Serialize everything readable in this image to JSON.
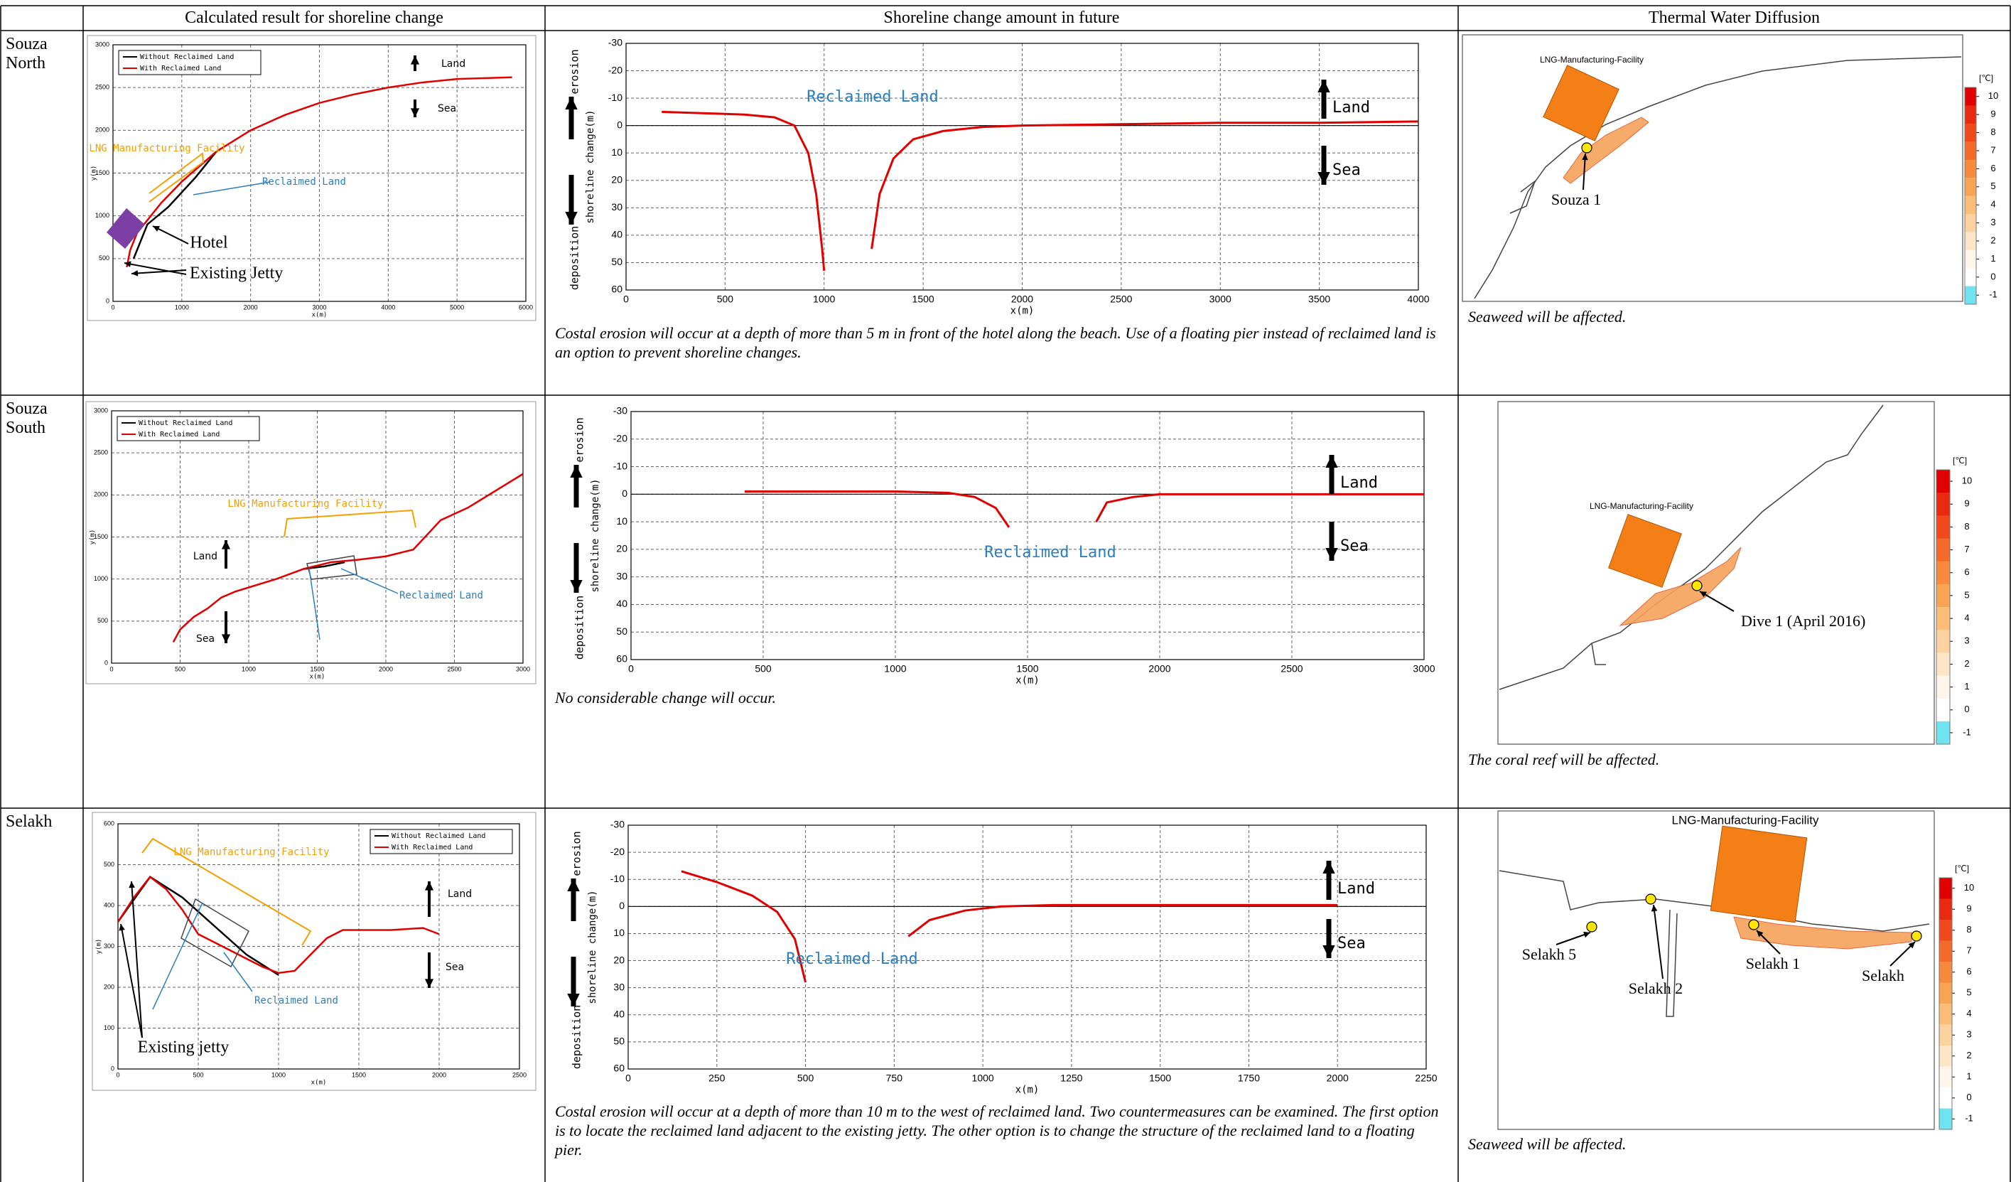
{
  "header": {
    "columns": [
      "Calculated result for shoreline change",
      "Shoreline change amount in future",
      "Thermal Water Diffusion"
    ]
  },
  "rows": [
    {
      "label": "Souza North",
      "plan_chart": {
        "type": "line",
        "xlabel": "x(m)",
        "ylabel": "y(m)",
        "xlim": [
          0,
          6000
        ],
        "xticks": [
          0,
          1000,
          2000,
          3000,
          4000,
          5000,
          6000
        ],
        "ylim": [
          0,
          3000
        ],
        "yticks": [
          0,
          500,
          1000,
          1500,
          2000,
          2500,
          3000
        ],
        "grid": true,
        "legend": "upper left",
        "series": [
          {
            "name": "Without Reclaimed Land",
            "color": "#000000",
            "x": [
              300,
              500,
              800,
              1200,
              1500
            ],
            "values": [
              500,
              900,
              1100,
              1450,
              1750
            ]
          },
          {
            "name": "With Reclaimed Land",
            "color": "#e00000",
            "x": [
              200,
              250,
              350,
              500,
              700,
              1000,
              1500,
              2000,
              2500,
              3000,
              3500,
              4000,
              4500,
              5000,
              5800
            ],
            "values": [
              400,
              600,
              800,
              950,
              1150,
              1400,
              1750,
              2000,
              2180,
              2320,
              2420,
              2500,
              2560,
              2600,
              2620
            ]
          }
        ],
        "annotations": [
          "LNG Manufacturing Facility",
          "Reclaimed Land",
          "Hotel",
          "Existing Jetty",
          "Land",
          "Sea"
        ]
      },
      "change_chart": {
        "type": "line",
        "xlabel": "x(m)",
        "ylabel": "shoreline change(m)",
        "erosion_label": "erosion",
        "deposition_label": "deposition",
        "xlim": [
          0,
          4000
        ],
        "xticks": [
          0,
          500,
          1000,
          1500,
          2000,
          2500,
          3000,
          3500,
          4000
        ],
        "ylim": [
          -30,
          60
        ],
        "y_inverted": true,
        "yticks": [
          -30,
          -20,
          -10,
          0,
          10,
          20,
          30,
          40,
          50,
          60
        ],
        "grid": true,
        "series": [
          {
            "color": "#e00000",
            "x": [
              180,
              400,
              600,
              750,
              850,
              920,
              960,
              990,
              1000,
              1120,
              1240,
              1280,
              1350,
              1450,
              1600,
              1800,
              2000,
              2500,
              3000,
              3500,
              4000
            ],
            "values": [
              -5,
              -4.5,
              -4,
              -3,
              0,
              10,
              25,
              45,
              53,
              null,
              45,
              25,
              12,
              5,
              2,
              0.5,
              0,
              -0.5,
              -1,
              -1,
              -1.5
            ]
          }
        ],
        "annotations": [
          "Reclaimed Land",
          "Land",
          "Sea"
        ]
      },
      "comment": "Costal erosion will occur at a depth of more than 5 m in front of the hotel along the beach. Use of a floating pier instead of reclaimed land is an option to prevent shoreline changes.",
      "thermal_map": {
        "facility_label": "LNG-Manufacturing-Facility",
        "sites": [
          "Souza 1"
        ],
        "colorbar_unit": "[℃]",
        "colorbar_ticks": [
          10,
          9,
          8,
          7,
          6,
          5,
          4,
          3,
          2,
          1,
          0,
          -1
        ],
        "comment": "Seaweed will be affected."
      }
    },
    {
      "label": "Souza South",
      "plan_chart": {
        "type": "line",
        "xlabel": "x(m)",
        "ylabel": "y(m)",
        "xlim": [
          0,
          3000
        ],
        "xticks": [
          0,
          500,
          1000,
          1500,
          2000,
          2500,
          3000
        ],
        "ylim": [
          0,
          3000
        ],
        "yticks": [
          0,
          500,
          1000,
          1500,
          2000,
          2500,
          3000
        ],
        "grid": true,
        "legend": "upper left",
        "series": [
          {
            "name": "Without Reclaimed Land",
            "color": "#000000",
            "x": [
              1400,
              1550,
              1700
            ],
            "values": [
              1120,
              1150,
              1200
            ]
          },
          {
            "name": "With Reclaimed Land",
            "color": "#e00000",
            "x": [
              450,
              500,
              600,
              700,
              800,
              900,
              1000,
              1200,
              1400,
              1600,
              1800,
              2000,
              2200,
              2400,
              2600,
              2800,
              3000
            ],
            "values": [
              250,
              400,
              550,
              650,
              780,
              850,
              900,
              1000,
              1120,
              1200,
              1230,
              1270,
              1350,
              1700,
              1850,
              2050,
              2250
            ]
          }
        ],
        "annotations": [
          "LNG Manufacturing Facility",
          "Reclaimed Land",
          "Land",
          "Sea"
        ]
      },
      "change_chart": {
        "type": "line",
        "xlabel": "x(m)",
        "ylabel": "shoreline change(m)",
        "erosion_label": "erosion",
        "deposition_label": "deposition",
        "xlim": [
          0,
          3000
        ],
        "xticks": [
          0,
          500,
          1000,
          1500,
          2000,
          2500,
          3000
        ],
        "ylim": [
          -30,
          60
        ],
        "y_inverted": true,
        "yticks": [
          -30,
          -20,
          -10,
          0,
          10,
          20,
          30,
          40,
          50,
          60
        ],
        "grid": true,
        "series": [
          {
            "color": "#e00000",
            "x": [
              430,
              800,
              1000,
              1200,
              1300,
              1380,
              1430,
              1600,
              1760,
              1800,
              1900,
              2000,
              2500,
              3000
            ],
            "values": [
              -1,
              -1,
              -1,
              -0.5,
              1,
              5,
              12,
              null,
              10,
              3,
              1,
              0,
              0,
              0
            ]
          }
        ],
        "annotations": [
          "Reclaimed Land",
          "Land",
          "Sea"
        ]
      },
      "comment": "No considerable change will occur.",
      "thermal_map": {
        "facility_label": "LNG-Manufacturing-Facility",
        "sites": [
          "Dive 1 (April 2016)"
        ],
        "colorbar_unit": "[℃]",
        "colorbar_ticks": [
          10,
          9,
          8,
          7,
          6,
          5,
          4,
          3,
          2,
          1,
          0,
          -1
        ],
        "comment": "The coral reef will be affected."
      }
    },
    {
      "label": "Selakh",
      "plan_chart": {
        "type": "line",
        "xlabel": "x(m)",
        "ylabel": "y(m)",
        "xlim": [
          0,
          2500
        ],
        "xticks": [
          0,
          500,
          1000,
          1500,
          2000,
          2500
        ],
        "ylim": [
          0,
          600
        ],
        "yticks": [
          0,
          100,
          200,
          300,
          400,
          500,
          600
        ],
        "grid": true,
        "legend": "upper right",
        "series": [
          {
            "name": "Without Reclaimed Land",
            "color": "#000000",
            "x": [
              0,
              200,
              400,
              600,
              800,
              1000
            ],
            "values": [
              360,
              470,
              420,
              350,
              280,
              230
            ]
          },
          {
            "name": "With Reclaimed Land",
            "color": "#e00000",
            "x": [
              0,
              100,
              200,
              300,
              400,
              500,
              600,
              700,
              800,
              900,
              1000,
              1100,
              1200,
              1300,
              1400,
              1500,
              1700,
              1900,
              2000
            ],
            "values": [
              360,
              420,
              470,
              440,
              390,
              330,
              310,
              290,
              270,
              250,
              235,
              240,
              280,
              320,
              340,
              340,
              340,
              345,
              330
            ]
          }
        ],
        "annotations": [
          "LNG Manufacturing Facility",
          "Reclaimed Land",
          "Existing jetty",
          "Land",
          "Sea"
        ]
      },
      "change_chart": {
        "type": "line",
        "xlabel": "x(m)",
        "ylabel": "shoreline change(m)",
        "erosion_label": "erosion",
        "deposition_label": "deposition",
        "xlim": [
          0,
          2250
        ],
        "xticks": [
          0,
          250,
          500,
          750,
          1000,
          1250,
          1500,
          1750,
          2000,
          2250
        ],
        "ylim": [
          -30,
          60
        ],
        "y_inverted": true,
        "yticks": [
          -30,
          -20,
          -10,
          0,
          10,
          20,
          30,
          40,
          50,
          60
        ],
        "grid": true,
        "series": [
          {
            "color": "#e00000",
            "x": [
              150,
              250,
              350,
              420,
              470,
              500,
              650,
              790,
              850,
              950,
              1050,
              1200,
              1500,
              2000
            ],
            "values": [
              -13,
              -9,
              -4,
              2,
              12,
              28,
              null,
              11,
              5,
              1.5,
              0,
              -0.5,
              -0.5,
              -0.5
            ]
          }
        ],
        "annotations": [
          "Reclaimed Land",
          "Land",
          "Sea"
        ]
      },
      "comment": "Costal erosion will occur at a depth of more than 10 m to the west of reclaimed land. Two countermeasures can be examined. The first option is to locate the reclaimed land adjacent to the existing jetty. The other option is to change the structure of the reclaimed land to a floating pier.",
      "thermal_map": {
        "facility_label": "LNG-Manufacturing-Facility",
        "sites": [
          "Selakh 5",
          "Selakh 2",
          "Selakh 1",
          "Selakh"
        ],
        "colorbar_unit": "[℃]",
        "colorbar_ticks": [
          10,
          9,
          8,
          7,
          6,
          5,
          4,
          3,
          2,
          1,
          0,
          -1
        ],
        "comment": "Seaweed will be affected."
      }
    }
  ]
}
